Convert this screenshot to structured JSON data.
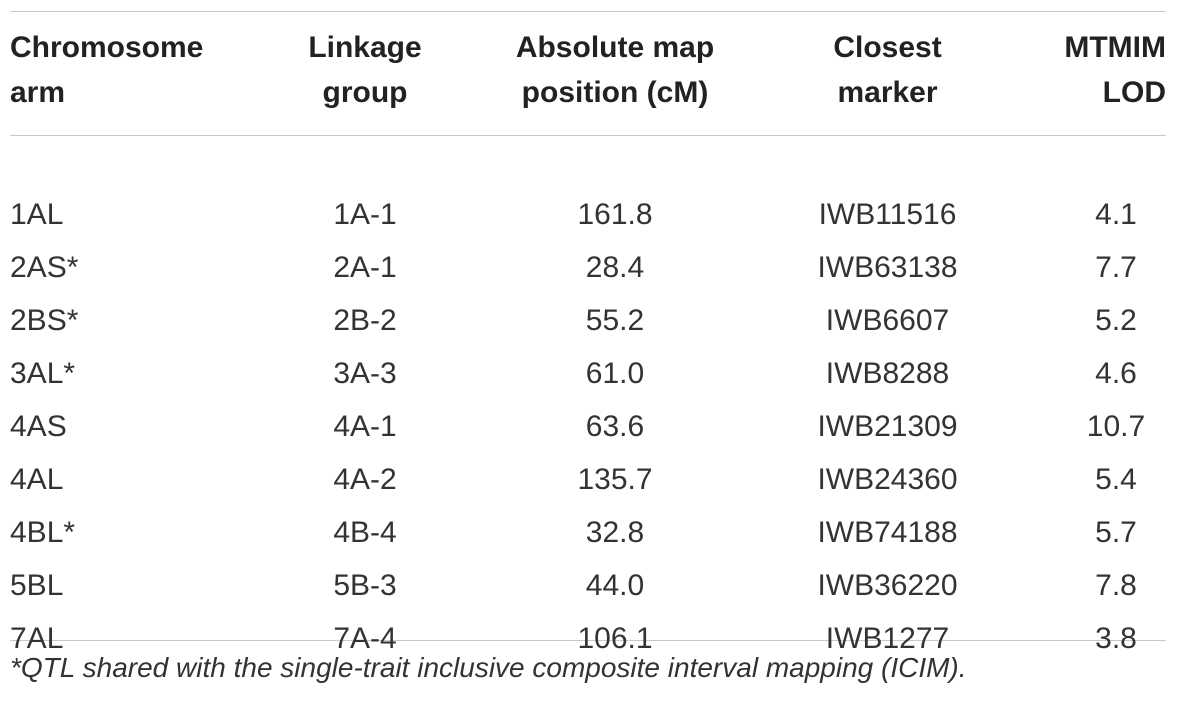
{
  "table": {
    "headers": [
      {
        "line1": "Chromosome",
        "line2": "arm"
      },
      {
        "line1": "Linkage",
        "line2": "group"
      },
      {
        "line1": "Absolute map",
        "line2": "position (cM)"
      },
      {
        "line1": "Closest",
        "line2": "marker"
      },
      {
        "line1": "MTMIM",
        "line2": "LOD"
      }
    ],
    "rows": [
      {
        "arm": "1AL",
        "group": "1A-1",
        "position": "161.8",
        "marker": "IWB11516",
        "lod": "4.1"
      },
      {
        "arm": "2AS*",
        "group": "2A-1",
        "position": "28.4",
        "marker": "IWB63138",
        "lod": "7.7"
      },
      {
        "arm": "2BS*",
        "group": "2B-2",
        "position": "55.2",
        "marker": "IWB6607",
        "lod": "5.2"
      },
      {
        "arm": "3AL*",
        "group": "3A-3",
        "position": "61.0",
        "marker": "IWB8288",
        "lod": "4.6"
      },
      {
        "arm": "4AS",
        "group": "4A-1",
        "position": "63.6",
        "marker": "IWB21309",
        "lod": "10.7"
      },
      {
        "arm": "4AL",
        "group": "4A-2",
        "position": "135.7",
        "marker": "IWB24360",
        "lod": "5.4"
      },
      {
        "arm": "4BL*",
        "group": "4B-4",
        "position": "32.8",
        "marker": "IWB74188",
        "lod": "5.7"
      },
      {
        "arm": "5BL",
        "group": "5B-3",
        "position": "44.0",
        "marker": "IWB36220",
        "lod": "7.8"
      },
      {
        "arm": "7AL",
        "group": "7A-4",
        "position": "106.1",
        "marker": "IWB1277",
        "lod": "3.8"
      }
    ]
  },
  "footnote": "*QTL shared with the single-trait inclusive composite interval mapping (ICIM).",
  "colors": {
    "text": "#333333",
    "rule": "#c8c8c8"
  }
}
